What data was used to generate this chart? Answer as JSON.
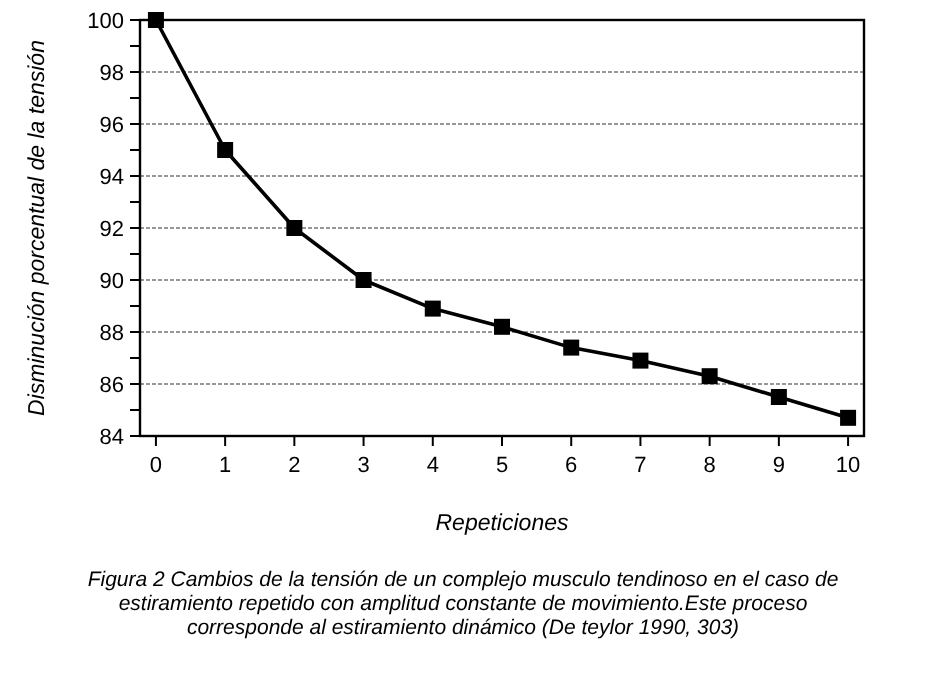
{
  "chart_data": {
    "type": "line",
    "xlabel": "Repeticiones",
    "ylabel": "Disminución porcentual de la tensión",
    "x": [
      0,
      1,
      2,
      3,
      4,
      5,
      6,
      7,
      8,
      9,
      10
    ],
    "series": [
      {
        "color": "#000000",
        "values": [
          100,
          95,
          92,
          90,
          88.9,
          88.2,
          87.4,
          86.9,
          86.3,
          85.5,
          84.7
        ]
      }
    ],
    "xlim": [
      -0.23,
      10.23
    ],
    "xticks": [
      0,
      1,
      2,
      3,
      4,
      5,
      6,
      7,
      8,
      9,
      10
    ],
    "ylim": [
      84,
      100
    ],
    "yticks": [
      84,
      {
        "value": 85,
        "label": null
      },
      86,
      {
        "value": 87,
        "label": null
      },
      88,
      {
        "value": 89,
        "label": null
      },
      90,
      {
        "value": 91,
        "label": null
      },
      92,
      {
        "value": 93,
        "label": null
      },
      94,
      {
        "value": 95,
        "label": null
      },
      96,
      {
        "value": 97,
        "label": null
      },
      98,
      {
        "value": 99,
        "label": null
      },
      100
    ],
    "grid": "y",
    "marker": "square",
    "line_style": "solid",
    "annotations": [
      "Figura 2 Cambios de la tensión de un complejo musculo tendinoso en el caso de estiramiento repetido con amplitud constante de movimiento.Este proceso corresponde al estiramiento dinámico (De teylor 1990, 303)"
    ]
  }
}
